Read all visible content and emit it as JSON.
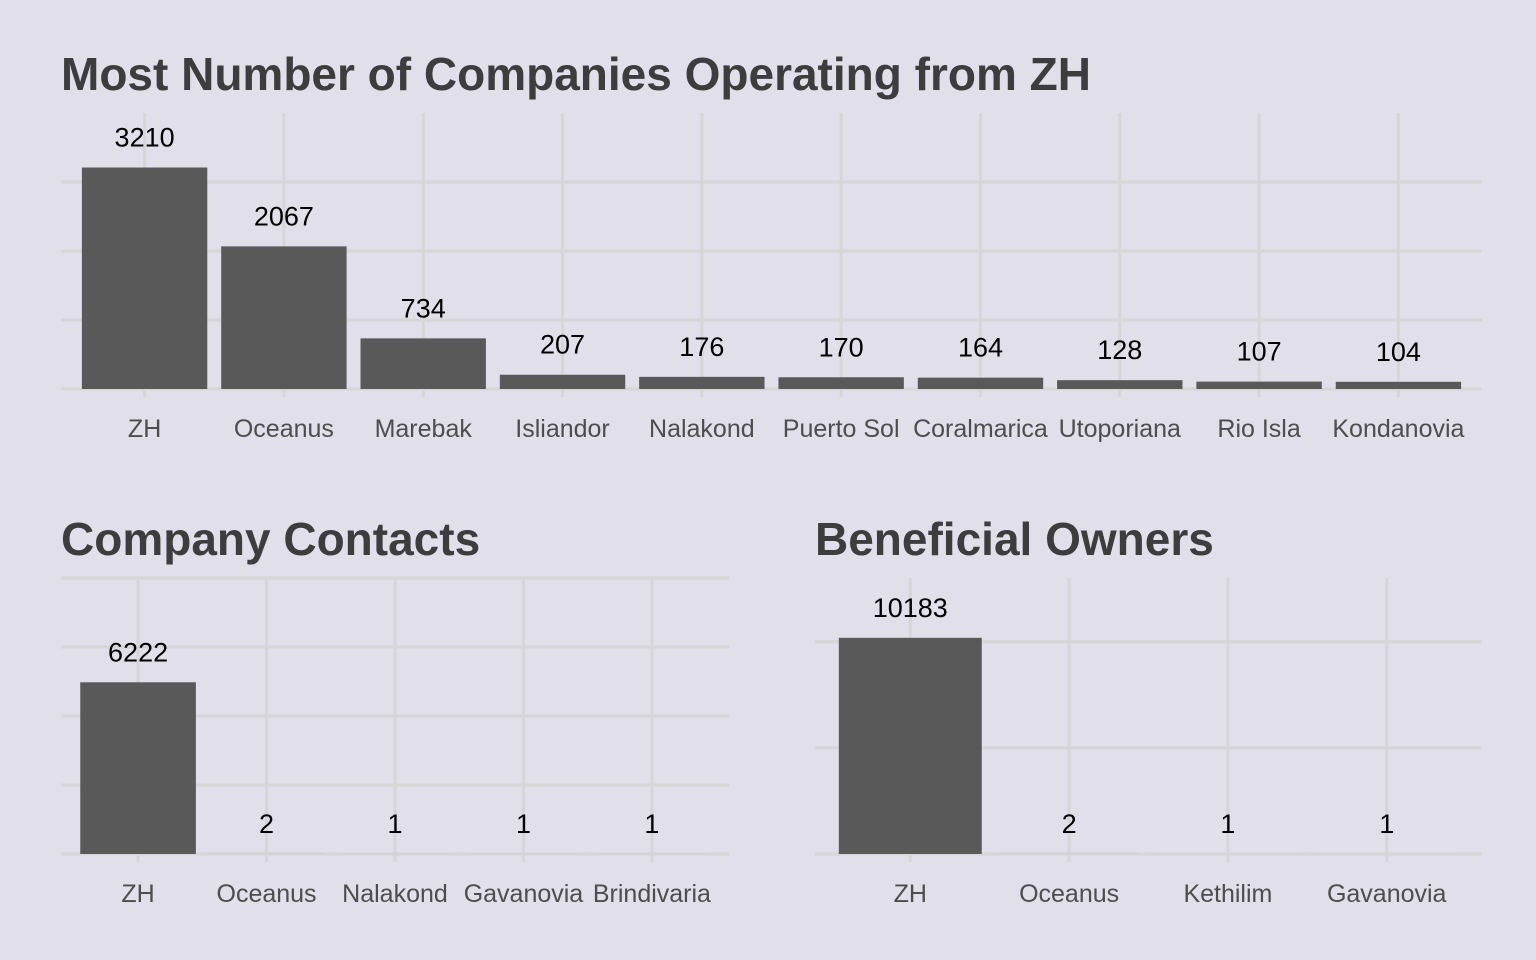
{
  "background_color": "#e0dfea",
  "bar_color": "#595959",
  "grid_color": "#d6d6d6",
  "chart_data": [
    {
      "id": "companies",
      "type": "bar",
      "title": "Most Number of Companies Operating from ZH",
      "categories": [
        "ZH",
        "Oceanus",
        "Marebak",
        "Isliandor",
        "Nalakond",
        "Puerto Sol",
        "Coralmarica",
        "Utoporiana",
        "Rio Isla",
        "Kondanovia"
      ],
      "values": [
        3210,
        2067,
        734,
        207,
        176,
        170,
        164,
        128,
        107,
        104
      ],
      "xlabel": "",
      "ylabel": "",
      "ylim": [
        0,
        4000
      ],
      "y_gridlines": [
        1000,
        2000,
        3000
      ],
      "y_tick_labels_shown": false,
      "grid": true,
      "legend": "none"
    },
    {
      "id": "contacts",
      "type": "bar",
      "title": "Company Contacts",
      "categories": [
        "ZH",
        "Oceanus",
        "Nalakond",
        "Gavanovia",
        "Brindivaria"
      ],
      "values": [
        6222,
        2,
        1,
        1,
        1
      ],
      "xlabel": "",
      "ylabel": "",
      "ylim": [
        0,
        10000
      ],
      "y_gridlines": [
        2500,
        5000,
        7500,
        10000
      ],
      "y_tick_labels_shown": false,
      "grid": true,
      "legend": "none"
    },
    {
      "id": "owners",
      "type": "bar",
      "title": "Beneficial Owners",
      "categories": [
        "ZH",
        "Oceanus",
        "Kethilim",
        "Gavanovia"
      ],
      "values": [
        10183,
        2,
        1,
        1
      ],
      "xlabel": "",
      "ylabel": "",
      "ylim": [
        0,
        13000
      ],
      "y_gridlines": [
        5000,
        10000
      ],
      "y_tick_labels_shown": false,
      "grid": true,
      "legend": "none"
    }
  ]
}
